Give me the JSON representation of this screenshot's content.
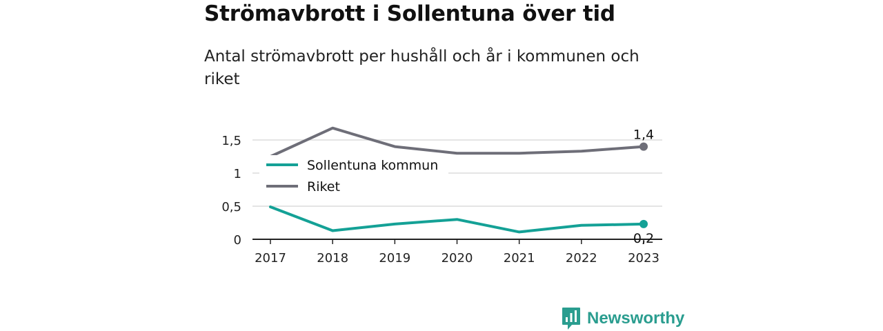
{
  "header": {
    "title": "Strömavbrott i Sollentuna över tid",
    "subtitle": "Antal strömavbrott per hushåll och år i kommunen och riket"
  },
  "footer": {
    "brand": "Newsworthy",
    "brand_icon": "bar-chart-icon"
  },
  "colors": {
    "kommun": "#14a196",
    "riket": "#6e6e78",
    "grid": "#dcdcdc",
    "brand": "#2a9d8f"
  },
  "chart_data": {
    "type": "line",
    "title": "",
    "xlabel": "",
    "ylabel": "",
    "x": [
      "2017",
      "2018",
      "2019",
      "2020",
      "2021",
      "2022",
      "2023"
    ],
    "ylim": [
      0,
      1.6
    ],
    "yticks": [
      0,
      0.5,
      1,
      1.5
    ],
    "ytick_labels": [
      "0",
      "0,5",
      "1",
      "1,5"
    ],
    "grid": true,
    "legend_position": "top-left",
    "series": [
      {
        "name": "Sollentuna kommun",
        "values": [
          0.49,
          0.13,
          0.23,
          0.3,
          0.11,
          0.21,
          0.23
        ],
        "end_label": "0,2",
        "color": "#14a196"
      },
      {
        "name": "Riket",
        "values": [
          1.25,
          1.68,
          1.4,
          1.3,
          1.3,
          1.33,
          1.4
        ],
        "end_label": "1,4",
        "color": "#6e6e78"
      }
    ]
  }
}
